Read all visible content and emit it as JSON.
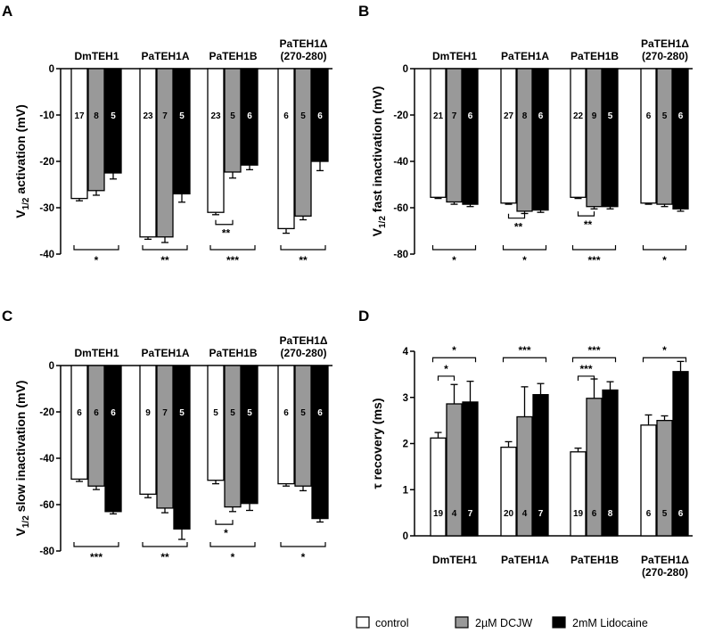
{
  "legend": [
    {
      "label": "control",
      "color": "#ffffff"
    },
    {
      "label": "2µM DCJW",
      "color": "#999999"
    },
    {
      "label": "2mM Lidocaine",
      "color": "#000000"
    }
  ],
  "chart_data": [
    {
      "panel": "A",
      "type": "bar",
      "ylabel": "V1/2 activation (mV)",
      "ylabel_parts": {
        "pre": "V",
        "sub": "1/2",
        "post": " activation (mV)"
      },
      "ylim": [
        -40,
        0
      ],
      "yticks": [
        0,
        -10,
        -20,
        -30,
        -40
      ],
      "tick_labels": [
        "0",
        "-10",
        "-20",
        "-30",
        "-40"
      ],
      "categories": [
        {
          "label": "DmTEH1",
          "label2": ""
        },
        {
          "label": "PaTEH1A",
          "label2": ""
        },
        {
          "label": "PaTEH1B",
          "label2": ""
        },
        {
          "label": "PaTEH1Δ",
          "label2": "(270-280)"
        }
      ],
      "series": [
        {
          "name": "control",
          "color": "#ffffff",
          "values": [
            -28.0,
            -36.3,
            -31.0,
            -34.5
          ],
          "errors": [
            0.5,
            0.5,
            0.5,
            1.0
          ],
          "n": [
            "17",
            "23",
            "23",
            "6"
          ]
        },
        {
          "name": "2µM DCJW",
          "color": "#999999",
          "values": [
            -26.3,
            -36.3,
            -22.3,
            -31.8
          ],
          "errors": [
            1.0,
            1.2,
            1.3,
            0.8
          ],
          "n": [
            "8",
            "7",
            "5",
            "5"
          ]
        },
        {
          "name": "2mM Lidocaine",
          "color": "#000000",
          "values": [
            -22.5,
            -27.0,
            -20.8,
            -20.0
          ],
          "errors": [
            1.3,
            1.8,
            1.0,
            2.0
          ],
          "n": [
            "5",
            "5",
            "6",
            "6"
          ]
        }
      ],
      "significance": [
        {
          "group": 0,
          "from": 0,
          "to": 2,
          "label": "*",
          "position": "below-axis"
        },
        {
          "group": 1,
          "from": 0,
          "to": 2,
          "label": "**",
          "position": "below-axis"
        },
        {
          "group": 2,
          "from": 0,
          "to": 2,
          "label": "***",
          "position": "below-axis"
        },
        {
          "group": 3,
          "from": 0,
          "to": 2,
          "label": "**",
          "position": "below-axis"
        },
        {
          "group": 2,
          "from": 0,
          "to": 1,
          "label": "**",
          "position": "below-bars",
          "level": -33.6
        }
      ]
    },
    {
      "panel": "B",
      "type": "bar",
      "ylabel": "V1/2 fast inactivation (mV)",
      "ylabel_parts": {
        "pre": "V",
        "sub": "1/2",
        "post": " fast inactivation (mV)"
      },
      "ylim": [
        -80,
        0
      ],
      "yticks": [
        0,
        -20,
        -40,
        -60,
        -80
      ],
      "tick_labels": [
        "0",
        "-20",
        "-40",
        "-60",
        "-80"
      ],
      "categories": [
        {
          "label": "DmTEH1",
          "label2": ""
        },
        {
          "label": "PaTEH1A",
          "label2": ""
        },
        {
          "label": "PaTEH1B",
          "label2": ""
        },
        {
          "label": "PaTEH1Δ",
          "label2": "(270-280)"
        }
      ],
      "series": [
        {
          "name": "control",
          "color": "#ffffff",
          "values": [
            -55.5,
            -58.0,
            -55.5,
            -58.0
          ],
          "errors": [
            0.5,
            0.5,
            0.5,
            0.5
          ],
          "n": [
            "21",
            "27",
            "22",
            "6"
          ]
        },
        {
          "name": "2µM DCJW",
          "color": "#999999",
          "values": [
            -57.5,
            -61.5,
            -59.5,
            -58.5
          ],
          "errors": [
            1.0,
            1.0,
            1.0,
            1.0
          ],
          "n": [
            "7",
            "8",
            "9",
            "5"
          ]
        },
        {
          "name": "2mM Lidocaine",
          "color": "#000000",
          "values": [
            -58.5,
            -61.0,
            -59.5,
            -60.5
          ],
          "errors": [
            1.0,
            1.0,
            1.0,
            1.0
          ],
          "n": [
            "6",
            "6",
            "5",
            "6"
          ]
        }
      ],
      "significance": [
        {
          "group": 0,
          "from": 0,
          "to": 2,
          "label": "*",
          "position": "below-axis"
        },
        {
          "group": 1,
          "from": 0,
          "to": 2,
          "label": "*",
          "position": "below-axis"
        },
        {
          "group": 2,
          "from": 0,
          "to": 2,
          "label": "***",
          "position": "below-axis"
        },
        {
          "group": 3,
          "from": 0,
          "to": 2,
          "label": "*",
          "position": "below-axis"
        },
        {
          "group": 1,
          "from": 0,
          "to": 1,
          "label": "**",
          "position": "below-bars",
          "level": -64.5
        },
        {
          "group": 2,
          "from": 0,
          "to": 1,
          "label": "**",
          "position": "below-bars",
          "level": -63.5
        }
      ]
    },
    {
      "panel": "C",
      "type": "bar",
      "ylabel": "V1/2 slow inactivation (mV)",
      "ylabel_parts": {
        "pre": "V",
        "sub": "1/2",
        "post": " slow inactivation (mV)"
      },
      "ylim": [
        -80,
        0
      ],
      "yticks": [
        0,
        -20,
        -40,
        -60,
        -80
      ],
      "tick_labels": [
        "0",
        "-20",
        "-40",
        "-60",
        "-80"
      ],
      "categories": [
        {
          "label": "DmTEH1",
          "label2": ""
        },
        {
          "label": "PaTEH1A",
          "label2": ""
        },
        {
          "label": "PaTEH1B",
          "label2": ""
        },
        {
          "label": "PaTEH1Δ",
          "label2": "(270-280)"
        }
      ],
      "series": [
        {
          "name": "control",
          "color": "#ffffff",
          "values": [
            -49.0,
            -55.5,
            -49.5,
            -51.0
          ],
          "errors": [
            1.0,
            1.5,
            1.5,
            1.0
          ],
          "n": [
            "6",
            "9",
            "5",
            "6"
          ]
        },
        {
          "name": "2µM DCJW",
          "color": "#999999",
          "values": [
            -52.0,
            -61.5,
            -61.0,
            -52.0
          ],
          "errors": [
            1.5,
            2.0,
            2.0,
            2.0
          ],
          "n": [
            "6",
            "7",
            "5",
            "5"
          ]
        },
        {
          "name": "2mM Lidocaine",
          "color": "#000000",
          "values": [
            -63.0,
            -70.5,
            -59.5,
            -66.0
          ],
          "errors": [
            1.0,
            4.5,
            3.0,
            1.5
          ],
          "n": [
            "6",
            "5",
            "5",
            "6"
          ]
        }
      ],
      "significance": [
        {
          "group": 0,
          "from": 0,
          "to": 2,
          "label": "***",
          "position": "below-axis"
        },
        {
          "group": 1,
          "from": 0,
          "to": 2,
          "label": "**",
          "position": "below-axis"
        },
        {
          "group": 2,
          "from": 0,
          "to": 2,
          "label": "*",
          "position": "below-axis"
        },
        {
          "group": 3,
          "from": 0,
          "to": 2,
          "label": "*",
          "position": "below-axis"
        },
        {
          "group": 2,
          "from": 0,
          "to": 1,
          "label": "*",
          "position": "below-bars",
          "level": -68.5
        }
      ]
    },
    {
      "panel": "D",
      "type": "bar",
      "ylabel": "τ recovery (ms)",
      "ylabel_parts": {
        "pre": "τ recovery (ms)",
        "sub": "",
        "post": ""
      },
      "ylim": [
        0,
        4
      ],
      "yticks": [
        0,
        1,
        2,
        3,
        4
      ],
      "tick_labels": [
        "0",
        "1",
        "2",
        "3",
        "4"
      ],
      "categories": [
        {
          "label": "DmTEH1",
          "label2": ""
        },
        {
          "label": "PaTEH1A",
          "label2": ""
        },
        {
          "label": "PaTEH1B",
          "label2": ""
        },
        {
          "label": "PaTEH1Δ",
          "label2": "(270-280)"
        }
      ],
      "series": [
        {
          "name": "control",
          "color": "#ffffff",
          "values": [
            2.12,
            1.92,
            1.82,
            2.4
          ],
          "errors": [
            0.12,
            0.12,
            0.08,
            0.22
          ],
          "n": [
            "19",
            "20",
            "19",
            "6"
          ]
        },
        {
          "name": "2µM DCJW",
          "color": "#999999",
          "values": [
            2.86,
            2.58,
            2.98,
            2.5
          ],
          "errors": [
            0.42,
            0.65,
            0.42,
            0.1
          ],
          "n": [
            "4",
            "4",
            "6",
            "5"
          ]
        },
        {
          "name": "2mM Lidocaine",
          "color": "#000000",
          "values": [
            2.9,
            3.06,
            3.16,
            3.56
          ],
          "errors": [
            0.45,
            0.24,
            0.18,
            0.22
          ],
          "n": [
            "7",
            "7",
            "8",
            "6"
          ]
        }
      ],
      "significance": [
        {
          "group": 0,
          "from": 0,
          "to": 2,
          "label": "*",
          "position": "above-axis",
          "level": 3.86
        },
        {
          "group": 1,
          "from": 0,
          "to": 2,
          "label": "***",
          "position": "above-axis",
          "level": 3.86
        },
        {
          "group": 2,
          "from": 0,
          "to": 2,
          "label": "***",
          "position": "above-axis",
          "level": 3.86
        },
        {
          "group": 3,
          "from": 0,
          "to": 2,
          "label": "*",
          "position": "above-axis",
          "level": 3.86
        },
        {
          "group": 0,
          "from": 0,
          "to": 1,
          "label": "*",
          "position": "above-bars",
          "level": 3.46
        },
        {
          "group": 2,
          "from": 0,
          "to": 1,
          "label": "***",
          "position": "above-bars",
          "level": 3.46
        }
      ]
    }
  ]
}
